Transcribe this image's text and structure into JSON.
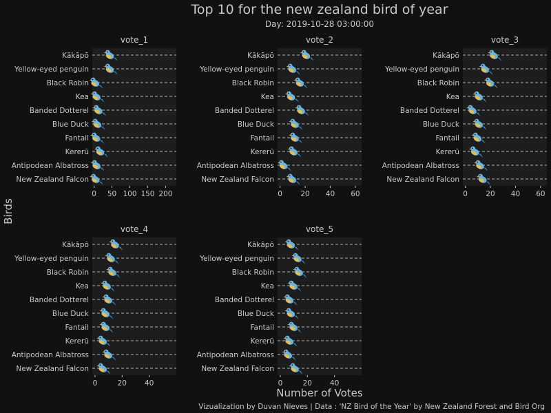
{
  "chart_data": {
    "type": "scatter",
    "title": "Top 10 for the new zealand bird of year",
    "subtitle": "Day: 2019-10-28 03:00:00",
    "xlabel": "Number of Votes",
    "ylabel": "Birds",
    "caption": "Vizualization by Duvan Nieves | Data : 'NZ Bird of the Year'  by New Zealand Forest and Bird Org",
    "marker": "bird-icon",
    "gridlines": "dashed",
    "categories": [
      "Kākāpō",
      "Yellow-eyed penguin",
      "Black Robin",
      "Kea",
      "Banded Dotterel",
      "Blue Duck",
      "Fantail",
      "Kererū",
      "Antipodean Albatross",
      "New Zealand Falcon"
    ],
    "colors": {
      "background": "#111111",
      "panel": "#1d1d1d",
      "grid": "#d0d0d0",
      "text": "#c8c8c8",
      "marker_body": "#6cb4dc",
      "marker_belly": "#e2be5a",
      "marker_beak": "#e89a3c"
    },
    "panels": [
      {
        "name": "vote_1",
        "xlim": [
          -5,
          230
        ],
        "xticks": [
          0,
          50,
          100,
          150,
          200
        ],
        "values": [
          45,
          45,
          4,
          8,
          13,
          10,
          7,
          18,
          8,
          5
        ]
      },
      {
        "name": "vote_2",
        "xlim": [
          -2,
          65
        ],
        "xticks": [
          0,
          20,
          40,
          60
        ],
        "values": [
          21,
          10,
          16,
          9,
          17,
          12,
          12,
          11,
          3,
          10
        ]
      },
      {
        "name": "vote_3",
        "xlim": [
          -2,
          65
        ],
        "xticks": [
          0,
          20,
          40,
          60
        ],
        "values": [
          23,
          16,
          20,
          11,
          6,
          11,
          10,
          8,
          12,
          14
        ]
      },
      {
        "name": "vote_4",
        "xlim": [
          -2,
          60
        ],
        "xticks": [
          0,
          20,
          40
        ],
        "values": [
          15,
          12,
          13,
          9,
          10,
          8,
          8,
          6,
          10,
          6
        ]
      },
      {
        "name": "vote_5",
        "xlim": [
          -2,
          60
        ],
        "xticks": [
          0,
          20,
          40
        ],
        "values": [
          8,
          13,
          14,
          10,
          7,
          8,
          10,
          7,
          6,
          11
        ]
      }
    ]
  }
}
